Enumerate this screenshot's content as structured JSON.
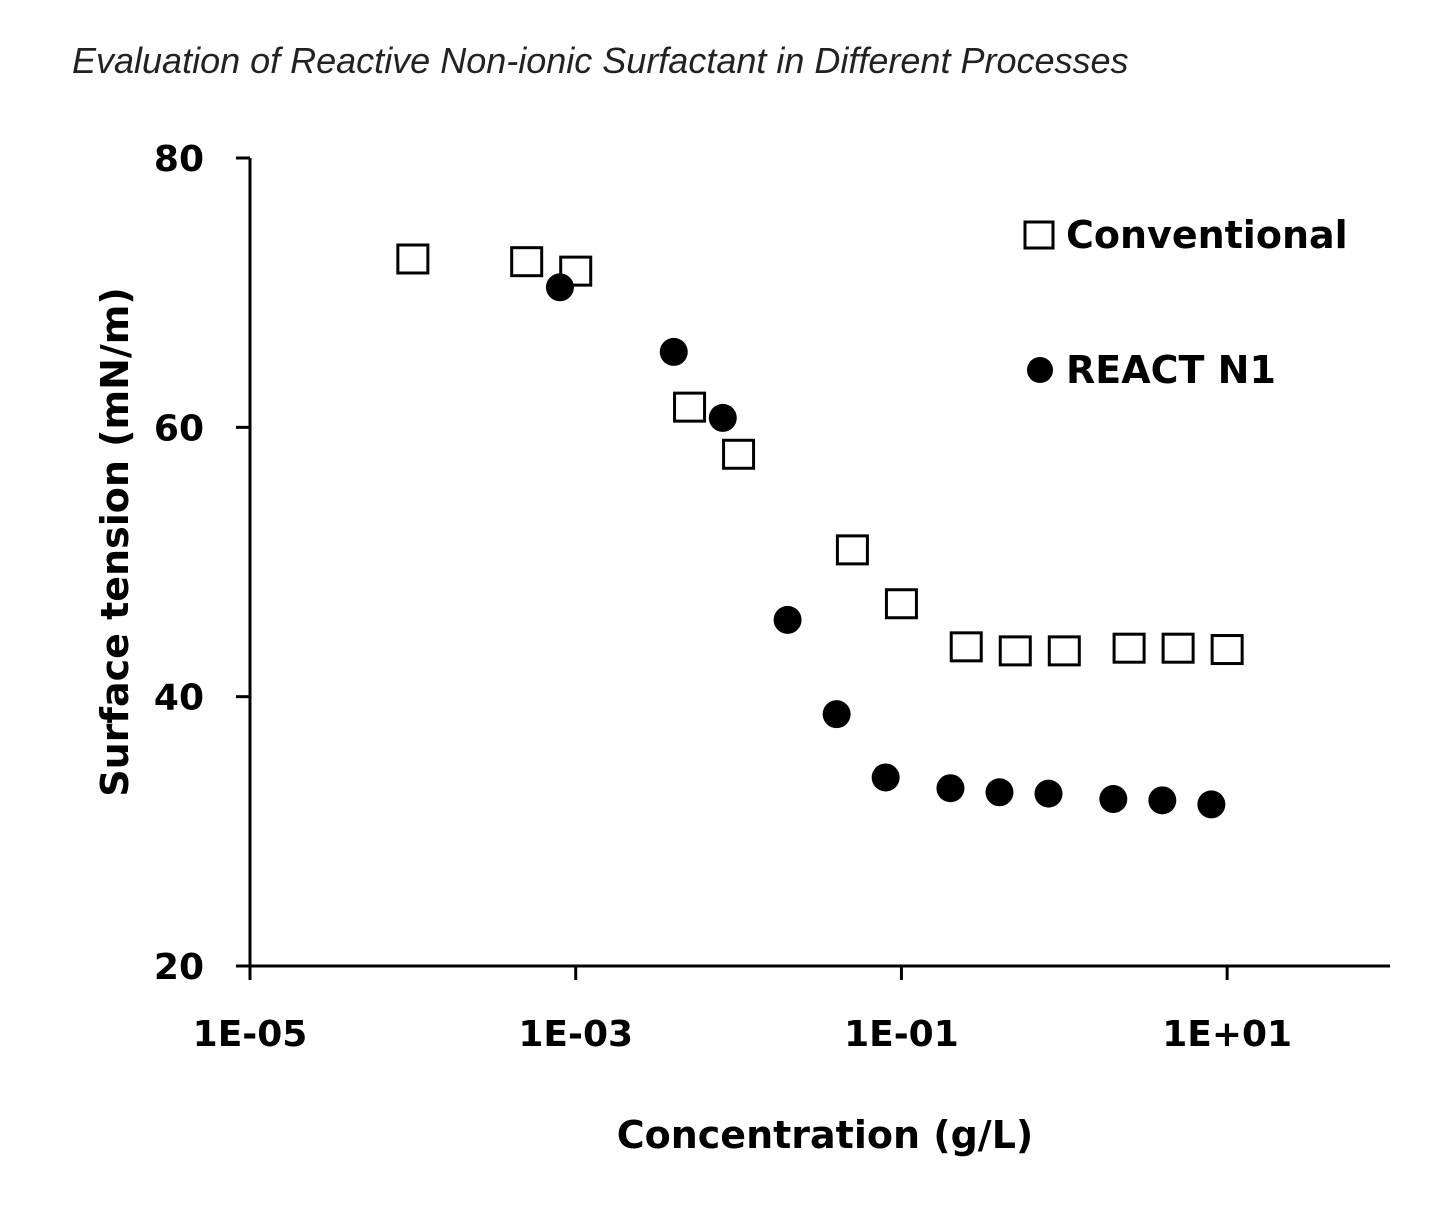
{
  "chart_data": {
    "type": "scatter",
    "title": "Evaluation of Reactive Non-ionic Surfactant in Different Processes",
    "xlabel": "Concentration (g/L)",
    "ylabel": "Surface tension (mN/m)",
    "xscale": "log",
    "xlim": [
      1e-05,
      100
    ],
    "ylim": [
      20,
      80
    ],
    "xticks": [
      "1E-05",
      "1E-03",
      "1E-01",
      "1E+01"
    ],
    "xtick_values": [
      1e-05,
      0.001,
      0.1,
      10
    ],
    "yticks": [
      "20",
      "40",
      "60",
      "80"
    ],
    "ytick_values": [
      20,
      40,
      60,
      80
    ],
    "grid": false,
    "legend_position": "top-right",
    "series": [
      {
        "name": "Conventional",
        "marker": "open-square",
        "color": "#000000",
        "x": [
          0.0001,
          0.0005,
          0.001,
          0.005,
          0.01,
          0.05,
          0.1,
          0.25,
          0.5,
          1,
          2.5,
          5,
          10
        ],
        "y": [
          72.5,
          72.3,
          71.6,
          61.5,
          58.0,
          50.9,
          46.9,
          43.7,
          43.4,
          43.4,
          43.6,
          43.6,
          43.5
        ]
      },
      {
        "name": "REACT N1",
        "marker": "filled-circle",
        "color": "#000000",
        "x": [
          0.0008,
          0.004,
          0.008,
          0.02,
          0.04,
          0.08,
          0.2,
          0.4,
          0.8,
          2,
          4,
          8
        ],
        "y": [
          70.4,
          65.6,
          60.7,
          45.7,
          38.7,
          34.0,
          33.2,
          32.9,
          32.8,
          32.4,
          32.3,
          32.0
        ]
      }
    ]
  }
}
